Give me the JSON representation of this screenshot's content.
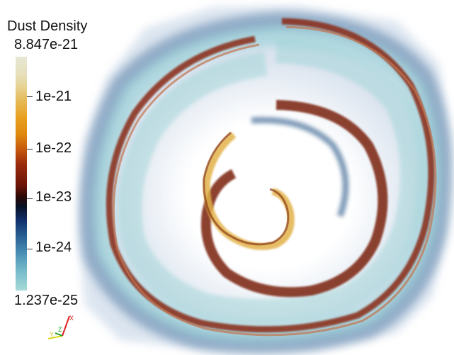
{
  "colorbar": {
    "title": "Dust Density",
    "max_label": "8.847e-21",
    "min_label": "1.237e-25",
    "ticks": [
      {
        "label": "1e-21"
      },
      {
        "label": "1e-22"
      },
      {
        "label": "1e-23"
      },
      {
        "label": "1e-24"
      }
    ]
  },
  "axes_triad": {
    "x_label": "X",
    "y_label": "Y",
    "z_label": "Z",
    "colors": {
      "x": "#e02020",
      "y": "#d8d820",
      "z": "#20a020"
    }
  },
  "colors": {
    "background": "#ffffff",
    "spiral_outer_dark": "#8a2a14",
    "spiral_gold": "#e2b24a",
    "spiral_teal": "#9fd4d6",
    "dust_blue": "#2f5c8a"
  }
}
